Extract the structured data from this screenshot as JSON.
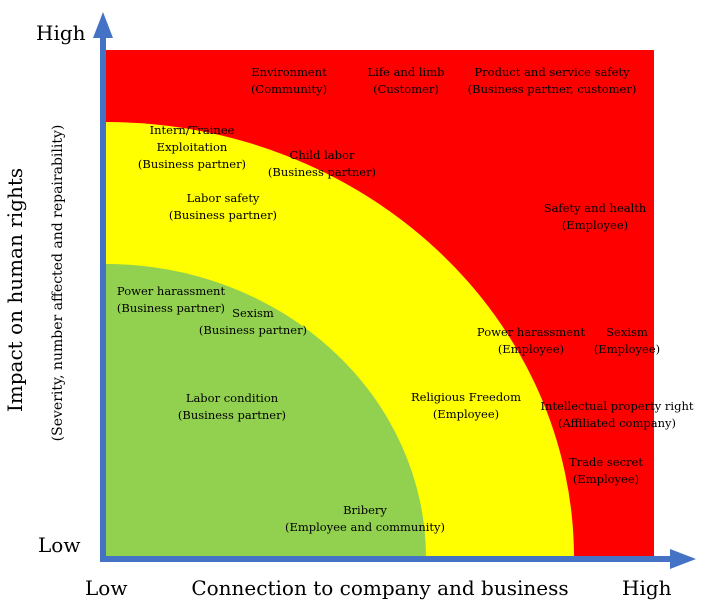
{
  "axes": {
    "y_high": "High",
    "y_low": "Low",
    "x_low": "Low",
    "x_high": "High",
    "x_title": "Connection to company and business",
    "y_title": "Impact on human rights",
    "y_subtitle": "(Severity, number affected and repairability)"
  },
  "zones": {
    "high": "#ff0000",
    "medium": "#ffff00",
    "low": "#92d050"
  },
  "axis_color": "#4472c4",
  "items": [
    {
      "id": "environment",
      "line1": "Environment",
      "line2": "(Community)"
    },
    {
      "id": "life-and-limb",
      "line1": "Life and limb",
      "line2": "(Customer)"
    },
    {
      "id": "product-safety",
      "line1": "Product and service safety",
      "line2": "(Business partner, customer)"
    },
    {
      "id": "intern-trainee",
      "line1": "Intern/Trainee",
      "line2": "Exploitation",
      "line3": "(Business partner)"
    },
    {
      "id": "child-labor",
      "line1": "Child labor",
      "line2": "(Business partner)"
    },
    {
      "id": "labor-safety",
      "line1": "Labor safety",
      "line2": "(Business partner)"
    },
    {
      "id": "safety-health",
      "line1": "Safety and health",
      "line2": "(Employee)"
    },
    {
      "id": "power-harassment-bp",
      "line1": "Power harassment",
      "line2": "(Business partner)"
    },
    {
      "id": "sexism-bp",
      "line1": "Sexism",
      "line2": "(Business partner)"
    },
    {
      "id": "power-harassment-emp",
      "line1": "Power harassment",
      "line2": "(Employee)"
    },
    {
      "id": "sexism-emp",
      "line1": "Sexism",
      "line2": "(Employee)"
    },
    {
      "id": "labor-condition",
      "line1": "Labor condition",
      "line2": "(Business partner)"
    },
    {
      "id": "religious-freedom",
      "line1": "Religious Freedom",
      "line2": "(Employee)"
    },
    {
      "id": "intellectual-property",
      "line1": "Intellectual property right",
      "line2": "(Affiliated company)"
    },
    {
      "id": "trade-secret",
      "line1": "Trade secret",
      "line2": "(Employee)"
    },
    {
      "id": "bribery",
      "line1": "Bribery",
      "line2": "(Employee and community)"
    }
  ]
}
